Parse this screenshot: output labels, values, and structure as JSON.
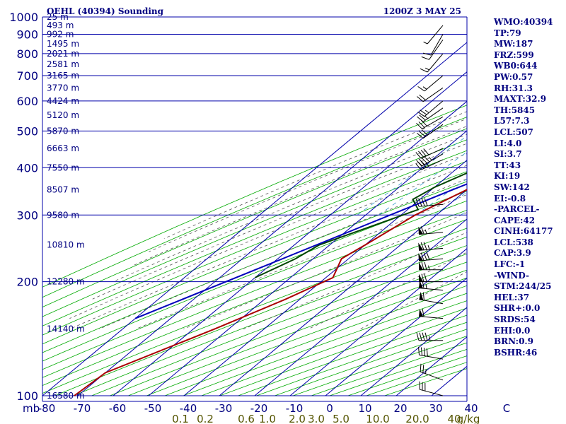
{
  "header": {
    "title": "OEHL (40394) Sounding",
    "time": "1200Z  3 MAY 25"
  },
  "stats": [
    "WMO:40394",
    "TP:79",
    "MW:187",
    "FRZ:599",
    "WB0:644",
    "PW:0.57",
    "RH:31.3",
    "MAXT:32.9",
    "TH:5845",
    "L57:7.3",
    "LCL:507",
    "LI:4.0",
    "SI:3.7",
    "TT:43",
    "KI:19",
    "SW:142",
    "EI:-0.8",
    "-PARCEL-",
    "CAPE:42",
    "CINH:64177",
    "LCL:538",
    "CAP:3.9",
    "LFC:-1",
    "-WIND-",
    "STM:244/25",
    "HEL:37",
    "SHR+:0.0",
    "SRDS:54",
    "EHI:0.0",
    "BRN:0.9",
    "BSHR:46"
  ],
  "chart_data": {
    "type": "line",
    "chart_kind": "skew-T log-P",
    "yscale": "log",
    "ylim_mb": [
      1000,
      100
    ],
    "xlim_c": [
      -80,
      40
    ],
    "grid": true,
    "xlabel": "mb",
    "isobars_mb": [
      100,
      200,
      300,
      400,
      500,
      600,
      700,
      800,
      900,
      1000
    ],
    "isotherm_labels": [
      "-80",
      "-70",
      "-60",
      "-50",
      "-40",
      "-30",
      "-20",
      "-10",
      "0",
      "10",
      "20",
      "30",
      "40",
      "C"
    ],
    "isotherms_c": [
      -80,
      -70,
      -60,
      -50,
      -40,
      -30,
      -20,
      -10,
      0,
      10,
      20,
      30,
      40,
      50
    ],
    "mixing_ratio_labels": [
      "0.1",
      "0.2",
      "0.6",
      "1.0",
      "2.0",
      "3.0",
      "5.0",
      "10.0",
      "20.0",
      "40",
      "g/kg"
    ],
    "mixing_ratio_gkg": [
      0.1,
      0.2,
      0.6,
      1.0,
      2.0,
      3.0,
      5.0,
      10.0,
      20.0,
      40.0
    ],
    "height_labels": [
      {
        "p": 100,
        "text": "16580 m"
      },
      {
        "p": 150,
        "text": "14140 m"
      },
      {
        "p": 200,
        "text": "12280 m"
      },
      {
        "p": 250,
        "text": "10810 m"
      },
      {
        "p": 300,
        "text": "9580 m"
      },
      {
        "p": 350,
        "text": "8507 m"
      },
      {
        "p": 400,
        "text": "7550 m"
      },
      {
        "p": 450,
        "text": "6663 m"
      },
      {
        "p": 500,
        "text": "5870 m"
      },
      {
        "p": 550,
        "text": "5120 m"
      },
      {
        "p": 600,
        "text": "4424 m"
      },
      {
        "p": 650,
        "text": "3770 m"
      },
      {
        "p": 700,
        "text": "3165 m"
      },
      {
        "p": 750,
        "text": "2581 m"
      },
      {
        "p": 800,
        "text": "2021 m"
      },
      {
        "p": 850,
        "text": "1495 m"
      },
      {
        "p": 900,
        "text": "992 m"
      },
      {
        "p": 950,
        "text": "493 m"
      },
      {
        "p": 1000,
        "text": "25 m"
      }
    ],
    "series": [
      {
        "role": "temperature",
        "color": "#aa0000",
        "points": [
          [
            100,
            -71
          ],
          [
            115,
            -70
          ],
          [
            150,
            -54
          ],
          [
            180,
            -44
          ],
          [
            205,
            -38
          ],
          [
            230,
            -42
          ],
          [
            250,
            -40
          ],
          [
            300,
            -36
          ],
          [
            350,
            -30
          ],
          [
            400,
            -23
          ],
          [
            450,
            -17
          ],
          [
            500,
            -10
          ],
          [
            550,
            -5
          ],
          [
            570,
            -5
          ],
          [
            600,
            -2
          ],
          [
            650,
            4
          ],
          [
            700,
            9
          ],
          [
            750,
            15
          ],
          [
            800,
            19
          ],
          [
            850,
            24
          ],
          [
            900,
            32.9
          ]
        ]
      },
      {
        "role": "dewpoint",
        "color": "#004400",
        "points": [
          [
            205,
            -60
          ],
          [
            230,
            -55
          ],
          [
            250,
            -53
          ],
          [
            290,
            -42
          ],
          [
            310,
            -37
          ],
          [
            330,
            -42
          ],
          [
            355,
            -40
          ],
          [
            400,
            -34
          ],
          [
            500,
            -30
          ],
          [
            570,
            -10
          ],
          [
            570,
            -6
          ],
          [
            600,
            -4
          ],
          [
            700,
            -2
          ],
          [
            800,
            2
          ],
          [
            865,
            4
          ],
          [
            900,
            2
          ]
        ]
      },
      {
        "role": "parcel",
        "color": "#0000bb",
        "points": [
          [
            160,
            -80
          ],
          [
            350,
            -34
          ],
          [
            540,
            -7
          ],
          [
            600,
            -2
          ],
          [
            900,
            32.9
          ]
        ]
      }
    ],
    "wind_barbs": [
      {
        "p": 100,
        "dir": 285,
        "kt": 30
      },
      {
        "p": 110,
        "dir": 290,
        "kt": 25
      },
      {
        "p": 125,
        "dir": 280,
        "kt": 40
      },
      {
        "p": 140,
        "dir": 270,
        "kt": 45
      },
      {
        "p": 160,
        "dir": 275,
        "kt": 60
      },
      {
        "p": 175,
        "dir": 280,
        "kt": 60
      },
      {
        "p": 190,
        "dir": 275,
        "kt": 65
      },
      {
        "p": 200,
        "dir": 270,
        "kt": 70
      },
      {
        "p": 215,
        "dir": 270,
        "kt": 75
      },
      {
        "p": 230,
        "dir": 265,
        "kt": 80
      },
      {
        "p": 245,
        "dir": 265,
        "kt": 75
      },
      {
        "p": 270,
        "dir": 265,
        "kt": 65
      },
      {
        "p": 320,
        "dir": 265,
        "kt": 40
      },
      {
        "p": 420,
        "dir": 245,
        "kt": 35
      },
      {
        "p": 435,
        "dir": 240,
        "kt": 45
      },
      {
        "p": 450,
        "dir": 245,
        "kt": 40
      },
      {
        "p": 520,
        "dir": 235,
        "kt": 30
      },
      {
        "p": 545,
        "dir": 240,
        "kt": 30
      },
      {
        "p": 575,
        "dir": 235,
        "kt": 25
      },
      {
        "p": 600,
        "dir": 230,
        "kt": 25
      },
      {
        "p": 650,
        "dir": 235,
        "kt": 20
      },
      {
        "p": 700,
        "dir": 230,
        "kt": 15
      },
      {
        "p": 800,
        "dir": 220,
        "kt": 15
      },
      {
        "p": 870,
        "dir": 215,
        "kt": 10
      },
      {
        "p": 900,
        "dir": 210,
        "kt": 10
      },
      {
        "p": 950,
        "dir": 220,
        "kt": 5
      }
    ]
  }
}
